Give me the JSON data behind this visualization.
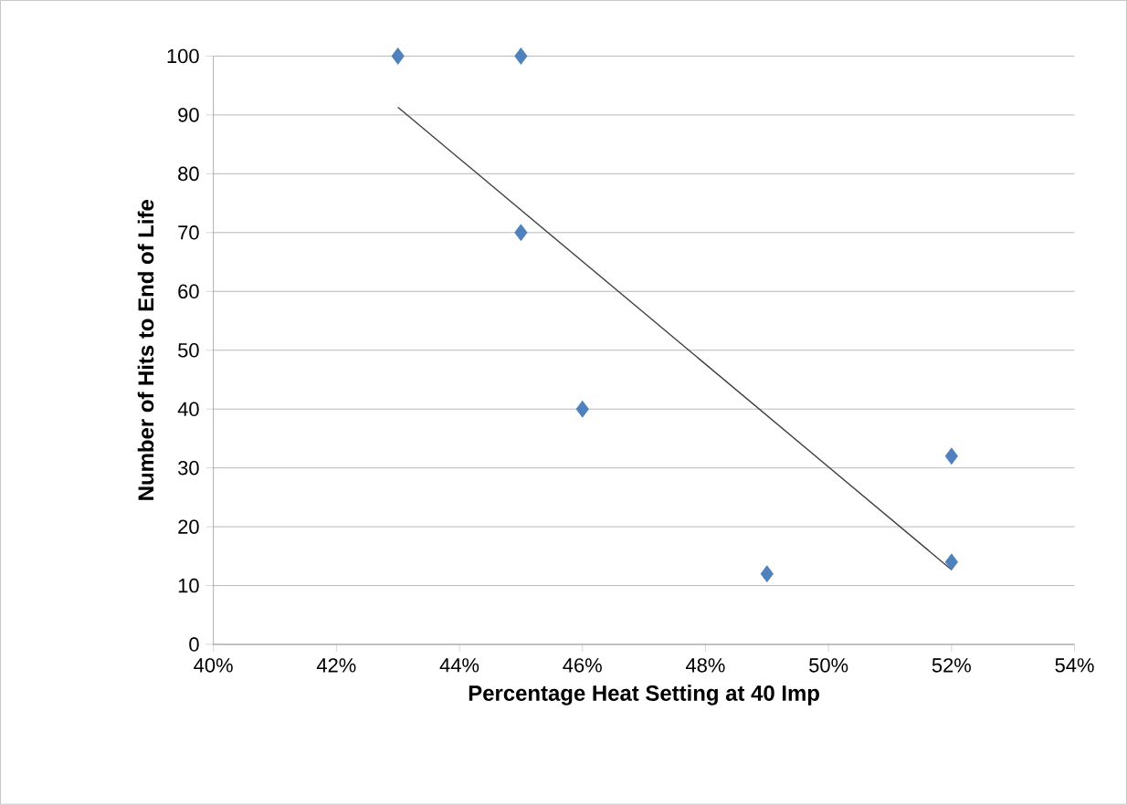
{
  "chart_data": {
    "type": "scatter",
    "xlabel": "Percentage Heat Setting at 40 Imp",
    "ylabel": "Number of Hits to End of Life",
    "xlim": [
      40,
      54
    ],
    "xticks": [
      {
        "value": 40,
        "label": "40%"
      },
      {
        "value": 42,
        "label": "42%"
      },
      {
        "value": 44,
        "label": "44%"
      },
      {
        "value": 46,
        "label": "46%"
      },
      {
        "value": 48,
        "label": "48%"
      },
      {
        "value": 50,
        "label": "50%"
      },
      {
        "value": 52,
        "label": "52%"
      },
      {
        "value": 54,
        "label": "54%"
      }
    ],
    "ylim": [
      0,
      100
    ],
    "yticks": [
      0,
      10,
      20,
      30,
      40,
      50,
      60,
      70,
      80,
      90,
      100
    ],
    "grid": "y",
    "marker": "diamond",
    "series": [
      {
        "color": "#4f81bd",
        "x": [
          43,
          45,
          45,
          46,
          49,
          52,
          52
        ],
        "values": [
          100,
          100,
          70,
          40,
          12,
          32,
          14
        ]
      },
      {
        "type": "line",
        "color": "#404040",
        "marker": "none",
        "x": [
          43,
          52
        ],
        "values": [
          91.3,
          12.7
        ]
      }
    ]
  }
}
